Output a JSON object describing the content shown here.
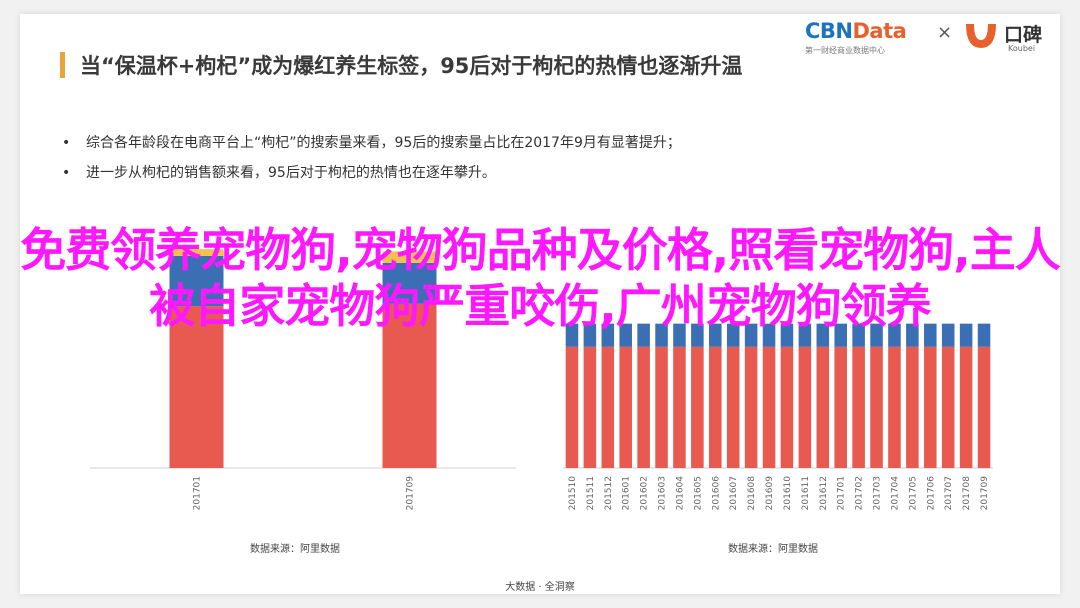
{
  "slide": {
    "title": "当“保温杯+枸杞”成为爆红养生标签，95后对于枸杞的热情也逐渐升温",
    "bullets": [
      "综合各年龄段在电商平台上“枸杞”的搜索量来看，95后的搜索量占比在2017年9月有显著提升；",
      "进一步从枸杞的销售额来看，95后对于枸杞的热情也在逐年攀升。"
    ],
    "logo_cbn_main": "CBN",
    "logo_cbn_accent": "Data",
    "logo_cbn_sub": "第一财经商业数据中心",
    "logo_sep": "×",
    "logo_koubei": "口碑",
    "logo_koubei_sub": "Koubei",
    "source_left": "数据来源：阿里数据",
    "source_right": "数据来源：阿里数据",
    "footer": "大数据 · 全洞察",
    "overlay_text": "免费领养宠物狗,宠物狗品种及价格,照看宠物狗,主人被自家宠物狗严重咬伤,广州宠物狗领养"
  },
  "colors": {
    "accent_bar": "#e8a33a",
    "series_red": "#e85a4f",
    "series_blue": "#3a6fb3",
    "series_yellow": "#f2c14e",
    "overlay": "#ff18ff"
  },
  "chart_data": [
    {
      "type": "bar",
      "stacked": true,
      "categories": [
        "201701",
        "201709"
      ],
      "series": [
        {
          "values": [
            71,
            72
          ],
          "color": "#e85a4f"
        },
        {
          "values": [
            22,
            18
          ],
          "color": "#3a6fb3"
        },
        {
          "values": [
            3,
            5
          ],
          "color": "#f2c14e"
        }
      ],
      "ylim": [
        0,
        100
      ],
      "grid": false
    },
    {
      "type": "bar",
      "stacked": true,
      "categories": [
        "201510",
        "201511",
        "201512",
        "201601",
        "201602",
        "201603",
        "201604",
        "201605",
        "201606",
        "201607",
        "201608",
        "201609",
        "201610",
        "201611",
        "201612",
        "201701",
        "201702",
        "201703",
        "201704",
        "201705",
        "201706",
        "201707",
        "201708",
        "201709"
      ],
      "series": [
        {
          "values": [
            73,
            73,
            73,
            73,
            73,
            73,
            73,
            73,
            73,
            73,
            73,
            73,
            73,
            73,
            73,
            73,
            73,
            73,
            73,
            73,
            73,
            73,
            73,
            73
          ],
          "color": "#e85a4f"
        },
        {
          "values": [
            14,
            14,
            14,
            14,
            14,
            14,
            14,
            14,
            14,
            14,
            14,
            14,
            14,
            14,
            14,
            14,
            14,
            14,
            14,
            14,
            14,
            14,
            14,
            14
          ],
          "color": "#3a6fb3"
        },
        {
          "values": [
            13,
            13,
            13,
            13,
            13,
            13,
            13,
            13,
            13,
            13,
            13,
            13,
            13,
            13,
            13,
            13,
            13,
            13,
            13,
            13,
            13,
            13,
            13,
            13
          ],
          "color": "#ffffff"
        }
      ],
      "ylim": [
        0,
        100
      ],
      "grid": false
    }
  ]
}
